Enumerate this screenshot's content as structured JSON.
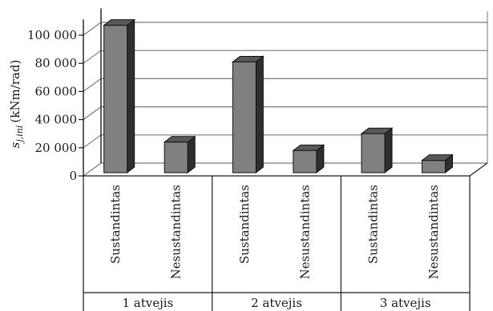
{
  "chart_data": {
    "type": "bar",
    "title": "",
    "ylabel": "(kNm/rad)",
    "ylabel_symbol": "s",
    "ylabel_subscript": "j,ini",
    "ylim": [
      0,
      110000
    ],
    "yticks": [
      0,
      20000,
      40000,
      60000,
      80000,
      100000
    ],
    "ytick_labels": [
      "0",
      "20 000",
      "40 000",
      "60 000",
      "80 000",
      "100 000"
    ],
    "grid": true,
    "style": "3d",
    "groups": [
      {
        "label": "1 atvejis",
        "categories": [
          "Sustandintas",
          "Nesustandintas"
        ],
        "values": [
          107000,
          24000
        ]
      },
      {
        "label": "2 atvejis",
        "categories": [
          "Sustandintas",
          "Nesustandintas"
        ],
        "values": [
          81000,
          18000
        ]
      },
      {
        "label": "3 atvejis",
        "categories": [
          "Sustandintas",
          "Nesustandintas"
        ],
        "values": [
          30000,
          11000
        ]
      }
    ],
    "colors": {
      "front": "#808080",
      "top": "#595959",
      "side": "#2e2e2e",
      "grid": "#7a7a7a",
      "wall": "#ffffff"
    }
  }
}
